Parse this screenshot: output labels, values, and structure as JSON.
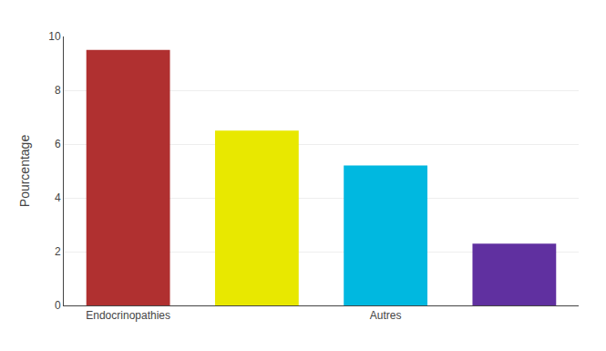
{
  "chart_data": {
    "type": "bar",
    "y_label": "Pourcentage",
    "categories": [
      "Endocrinopathies",
      null,
      "Autres",
      null
    ],
    "values": [
      9.5,
      6.5,
      5.2,
      2.3
    ],
    "colors": [
      "#b03030",
      "#e8e800",
      "#00b8e0",
      "#6030a0"
    ],
    "ylim": [
      0,
      10
    ],
    "yticks": [
      0,
      2,
      4,
      6,
      8,
      10
    ],
    "grid": true
  }
}
